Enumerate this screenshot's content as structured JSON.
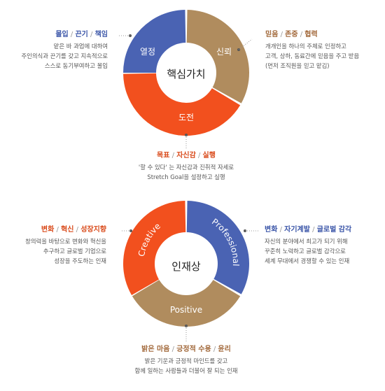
{
  "colors": {
    "blue": "#4a63b3",
    "brown": "#b08c5e",
    "orange": "#f2501e",
    "dot": "#555555"
  },
  "diagram1": {
    "center": "핵심가치",
    "segments": {
      "top_left": "열정",
      "right": "신뢰",
      "bottom": "도전"
    },
    "notes": {
      "left": {
        "heading": [
          "몰입",
          "끈기",
          "책임"
        ],
        "lines": [
          "맡은 바 과업에 대하여",
          "주인의식과 끈기를 갖고 지속적으로",
          "스스로 동기부여하고 몰입"
        ]
      },
      "right": {
        "heading": [
          "믿음",
          "존중",
          "협력"
        ],
        "lines": [
          "개개인을 하나의 주체로 인정하고",
          "고객, 상하, 동료간에 믿음을 주고 받음",
          "(먼저 조직원을 믿고 맡김)"
        ]
      },
      "bottom": {
        "heading": [
          "목표",
          "자신감",
          "실행"
        ],
        "lines": [
          "'할 수 있다' 는 자신감과 진취적 자세로",
          "Stretch Goal을 설정하고 실행"
        ]
      }
    }
  },
  "diagram2": {
    "center": "인재상",
    "segments": {
      "left": "Creative",
      "right": "Professional",
      "bottom": "Positive"
    },
    "notes": {
      "left": {
        "heading": [
          "변화",
          "혁신",
          "성장지향"
        ],
        "lines": [
          "창의력을 바탕으로 변화와 혁신을",
          "추구하고 글로벌 기업으로",
          "성장을 주도하는 인재"
        ]
      },
      "right": {
        "heading": [
          "변화",
          "자기계발",
          "글로벌 감각"
        ],
        "lines": [
          "자신의 분야에서 최고가 되기 위해",
          "꾸준히 노력하고 글로벌 감각으로",
          "세계 무대에서 경쟁할 수 있는 인재"
        ]
      },
      "bottom": {
        "heading": [
          "밝은 마음",
          "긍정적 수용",
          "윤리"
        ],
        "lines": [
          "밝은 기운과 긍정적 마인드를 갖고",
          "함께 일하는 사람들과 더불어 잘 되는 인재"
        ]
      }
    }
  }
}
